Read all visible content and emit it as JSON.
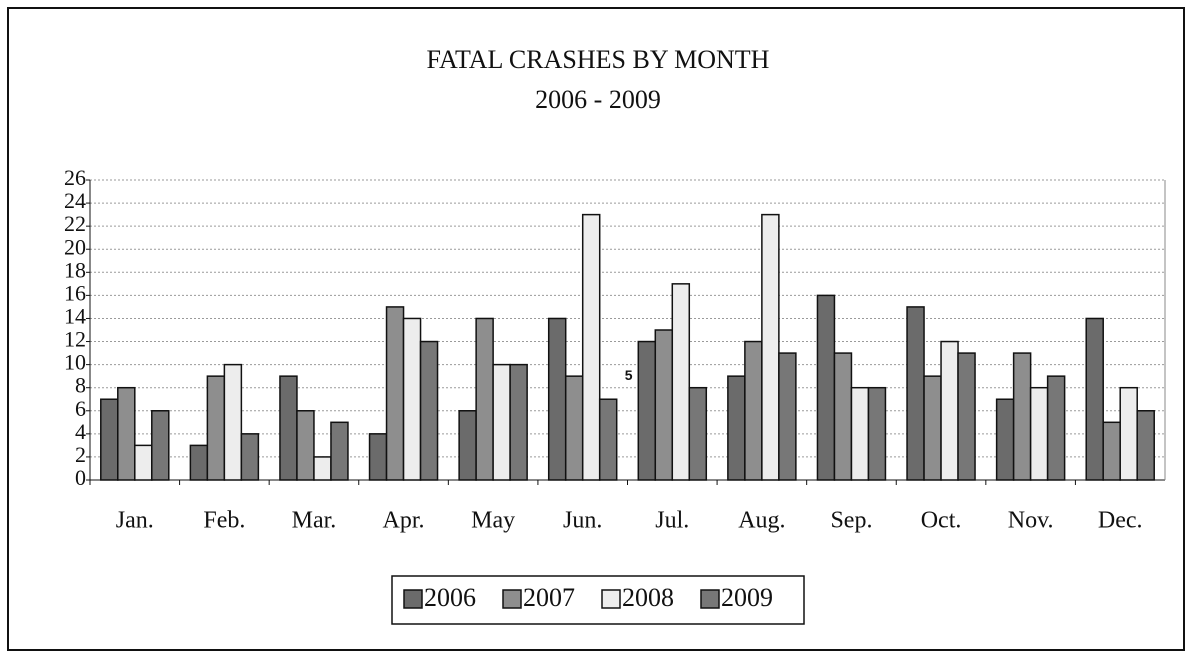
{
  "chart_data": {
    "type": "bar",
    "title": "FATAL CRASHES BY MONTH",
    "subtitle": "2006 - 2009",
    "annotation": "5",
    "categories": [
      "Jan.",
      "Feb.",
      "Mar.",
      "Apr.",
      "May",
      "Jun.",
      "Jul.",
      "Aug.",
      "Sep.",
      "Oct.",
      "Nov.",
      "Dec."
    ],
    "series": [
      {
        "name": "2006",
        "color": "#6b6b6b",
        "values": [
          7,
          3,
          9,
          4,
          6,
          14,
          12,
          9,
          16,
          15,
          7,
          14
        ]
      },
      {
        "name": "2007",
        "color": "#8e8e8e",
        "values": [
          8,
          9,
          6,
          15,
          14,
          9,
          13,
          12,
          11,
          9,
          11,
          5
        ]
      },
      {
        "name": "2008",
        "color": "#ededed",
        "values": [
          3,
          10,
          2,
          14,
          10,
          23,
          17,
          23,
          8,
          12,
          8,
          8
        ]
      },
      {
        "name": "2009",
        "color": "#777777",
        "values": [
          6,
          4,
          5,
          12,
          10,
          7,
          8,
          11,
          8,
          11,
          9,
          6
        ]
      }
    ],
    "ylim": [
      0,
      26
    ],
    "yticks": [
      0,
      2,
      4,
      6,
      8,
      10,
      12,
      14,
      16,
      18,
      20,
      22,
      24,
      26
    ],
    "grid": true,
    "legend": "bottom"
  }
}
